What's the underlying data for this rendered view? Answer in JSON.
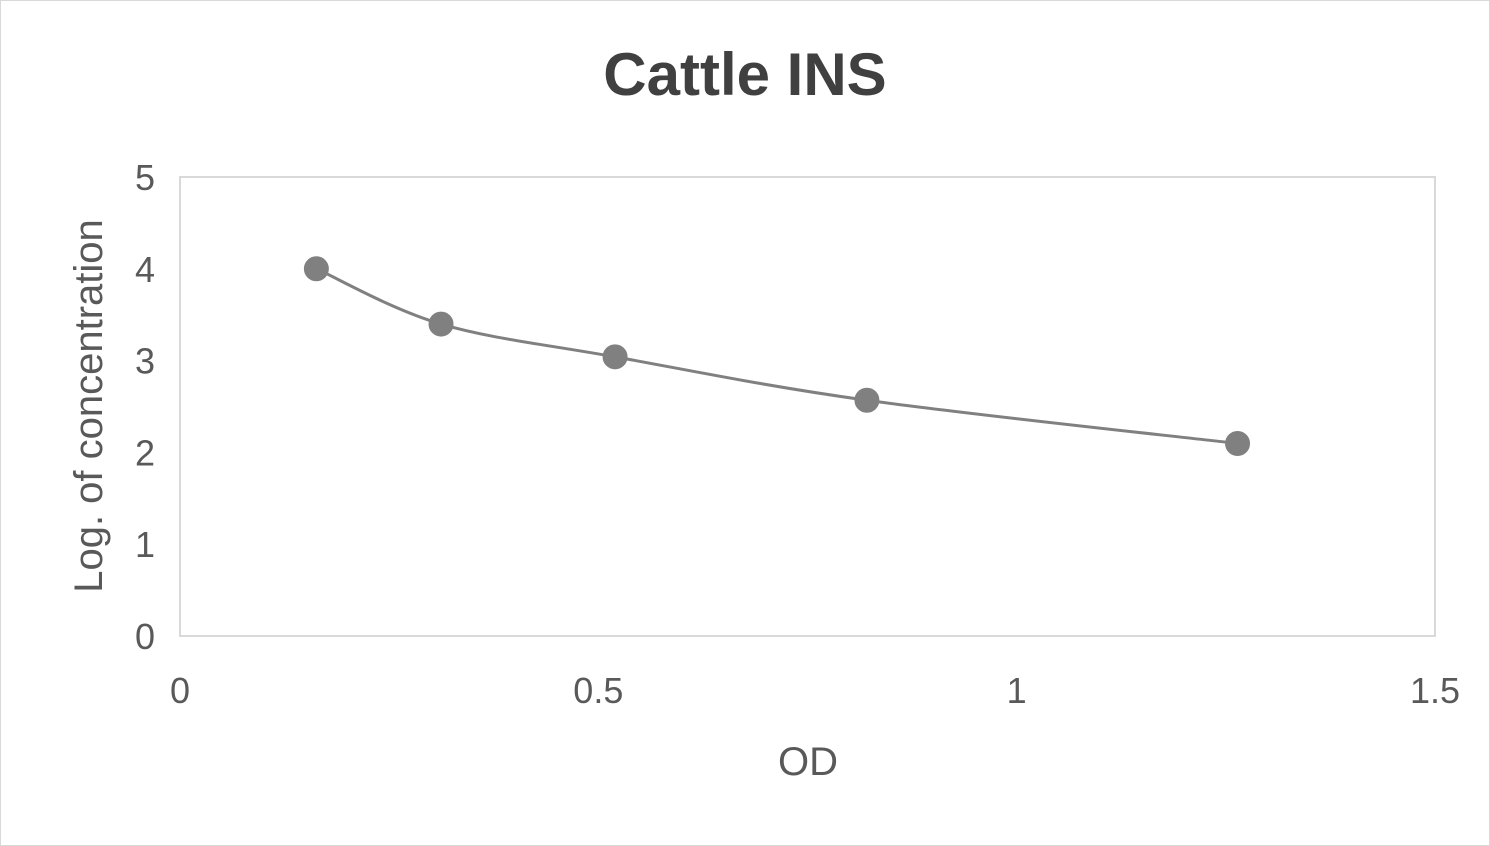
{
  "chart_data": {
    "type": "scatter",
    "title": "Cattle INS",
    "xlabel": "OD",
    "ylabel": "Log. of concentration",
    "xlim": [
      0,
      1.5
    ],
    "ylim": [
      0,
      5
    ],
    "x_ticks": [
      "0",
      "0.5",
      "1",
      "1.5"
    ],
    "y_ticks": [
      "0",
      "1",
      "2",
      "3",
      "4",
      "5"
    ],
    "grid": false,
    "legend": "none",
    "smoothed_line": true,
    "series": [
      {
        "x": [
          0.163,
          0.312,
          0.52,
          0.821,
          1.264
        ],
        "y": [
          4.0,
          3.398,
          3.041,
          2.568,
          2.097
        ]
      }
    ],
    "colors": {
      "marker": "#808080",
      "line": "#808080",
      "plot_border": "#d9d9d9",
      "text": "#595959",
      "title": "#404040"
    }
  }
}
